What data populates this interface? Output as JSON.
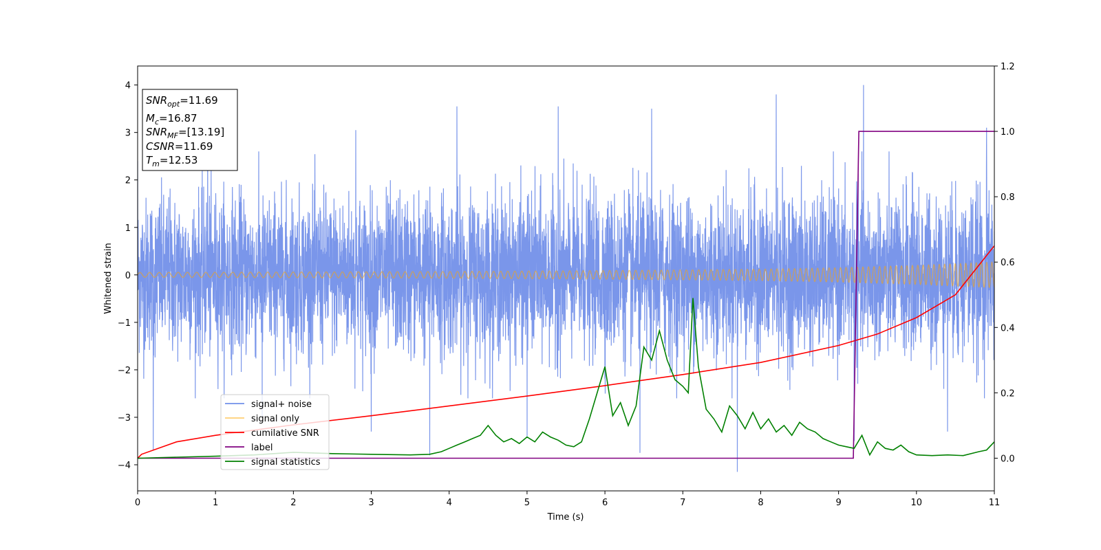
{
  "chart_data": {
    "type": "line",
    "xlabel": "Time (s)",
    "ylabel": "Whitened strain",
    "xlim": [
      0,
      11
    ],
    "ylim_left": [
      -4.55,
      4.4
    ],
    "ylim_right": [
      -0.1,
      1.2
    ],
    "x_ticks": [
      "0",
      "1",
      "2",
      "3",
      "4",
      "5",
      "6",
      "7",
      "8",
      "9",
      "10",
      "11"
    ],
    "y_left_ticks": [
      "4",
      "3",
      "2",
      "1",
      "0",
      "−1",
      "−2",
      "−3",
      "−4"
    ],
    "y_right_ticks": [
      "1.2",
      "1.0",
      "0.8",
      "0.6",
      "0.4",
      "0.2",
      "0.0"
    ],
    "grid": false,
    "legend_position": "lower-left",
    "annotation": {
      "lines": [
        {
          "base": "SNR",
          "sub": "opt",
          "rest": "=11.69"
        },
        {
          "base": "M",
          "sub": "c",
          "rest": "=16.87"
        },
        {
          "base": "SNR",
          "sub": "MF",
          "rest": "=[13.19]"
        },
        {
          "base": "CSNR",
          "sub": "",
          "rest": "=11.69"
        },
        {
          "base": "T",
          "sub": "m",
          "rest": "=12.53"
        }
      ]
    },
    "series": [
      {
        "name": "signal+ noise",
        "axis": "left",
        "color": "#4169e1",
        "description": "noisy strain, amplitude roughly ±2.5 with spikes to about ±4",
        "peak_x": [
          0.0,
          0.9,
          2.8,
          4.1,
          5.4,
          6.6,
          8.2,
          9.32,
          10.9
        ],
        "peak_y": [
          2.4,
          2.9,
          3.05,
          3.55,
          3.55,
          3.5,
          3.8,
          4.0,
          3.1
        ],
        "trough_x": [
          0.2,
          1.6,
          3.0,
          3.75,
          5.0,
          6.45,
          7.7,
          9.2,
          10.4
        ],
        "trough_y": [
          -3.7,
          -3.0,
          -3.3,
          -3.8,
          -3.4,
          -3.75,
          -4.15,
          -3.5,
          -3.3
        ]
      },
      {
        "name": "signal only",
        "axis": "left",
        "color": "#ffa500",
        "description": "chirp oscillation growing in amplitude and frequency",
        "amplitude_x": [
          0,
          2,
          4,
          6,
          8,
          9,
          10,
          11
        ],
        "amplitude_y": [
          0.05,
          0.06,
          0.07,
          0.09,
          0.12,
          0.15,
          0.2,
          0.27
        ]
      },
      {
        "name": "cumilative SNR",
        "axis": "right",
        "color": "#ff0000",
        "x": [
          0,
          0.05,
          0.5,
          1,
          2,
          3,
          4,
          5,
          6,
          7,
          8,
          9,
          9.5,
          10,
          10.5,
          11
        ],
        "y": [
          0.0,
          0.012,
          0.05,
          0.07,
          0.102,
          0.13,
          0.16,
          0.19,
          0.222,
          0.256,
          0.293,
          0.345,
          0.38,
          0.43,
          0.5,
          0.65
        ]
      },
      {
        "name": "label",
        "axis": "right",
        "color": "#800080",
        "x": [
          0,
          9.19,
          9.26,
          11
        ],
        "y": [
          0.0,
          0.0,
          1.0,
          1.0
        ]
      },
      {
        "name": "signal statistics",
        "axis": "right",
        "color": "#008000",
        "x": [
          0,
          0.5,
          1.0,
          1.5,
          2.0,
          2.5,
          3.0,
          3.5,
          3.75,
          3.9,
          4.0,
          4.1,
          4.2,
          4.3,
          4.4,
          4.5,
          4.6,
          4.7,
          4.8,
          4.9,
          5.0,
          5.1,
          5.2,
          5.3,
          5.4,
          5.5,
          5.6,
          5.7,
          5.8,
          5.9,
          6.0,
          6.1,
          6.2,
          6.3,
          6.4,
          6.5,
          6.6,
          6.7,
          6.8,
          6.9,
          7.0,
          7.07,
          7.13,
          7.2,
          7.3,
          7.4,
          7.5,
          7.6,
          7.7,
          7.8,
          7.9,
          8.0,
          8.1,
          8.2,
          8.3,
          8.4,
          8.5,
          8.6,
          8.7,
          8.8,
          8.9,
          9.0,
          9.1,
          9.2,
          9.3,
          9.4,
          9.5,
          9.6,
          9.7,
          9.8,
          9.9,
          10.0,
          10.2,
          10.4,
          10.6,
          10.8,
          10.9,
          11.0
        ],
        "y": [
          0.0,
          0.003,
          0.006,
          0.01,
          0.018,
          0.014,
          0.012,
          0.01,
          0.012,
          0.02,
          0.03,
          0.04,
          0.05,
          0.06,
          0.07,
          0.1,
          0.07,
          0.05,
          0.06,
          0.045,
          0.065,
          0.05,
          0.08,
          0.065,
          0.055,
          0.04,
          0.035,
          0.05,
          0.12,
          0.2,
          0.28,
          0.13,
          0.17,
          0.1,
          0.16,
          0.34,
          0.3,
          0.39,
          0.3,
          0.24,
          0.22,
          0.2,
          0.49,
          0.28,
          0.15,
          0.12,
          0.08,
          0.16,
          0.13,
          0.09,
          0.14,
          0.09,
          0.12,
          0.08,
          0.1,
          0.07,
          0.11,
          0.09,
          0.08,
          0.06,
          0.05,
          0.04,
          0.035,
          0.03,
          0.07,
          0.01,
          0.05,
          0.03,
          0.025,
          0.04,
          0.02,
          0.01,
          0.008,
          0.01,
          0.008,
          0.02,
          0.025,
          0.05
        ]
      }
    ]
  }
}
